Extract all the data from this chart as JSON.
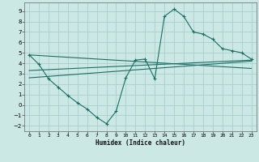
{
  "xlabel": "Humidex (Indice chaleur)",
  "background_color": "#cce8e5",
  "grid_color": "#aacfcc",
  "line_color": "#1a6e65",
  "xlim": [
    -0.5,
    23.5
  ],
  "ylim": [
    -2.5,
    9.8
  ],
  "xticks": [
    0,
    1,
    2,
    3,
    4,
    5,
    6,
    7,
    8,
    9,
    10,
    11,
    12,
    13,
    14,
    15,
    16,
    17,
    18,
    19,
    20,
    21,
    22,
    23
  ],
  "yticks": [
    -2,
    -1,
    0,
    1,
    2,
    3,
    4,
    5,
    6,
    7,
    8,
    9
  ],
  "series1_x": [
    0,
    1,
    2,
    3,
    4,
    5,
    6,
    7,
    8,
    9,
    10,
    11,
    12,
    13,
    14,
    15,
    16,
    17,
    18,
    19,
    20,
    21,
    22,
    23
  ],
  "series1_y": [
    4.8,
    3.9,
    2.5,
    1.7,
    0.9,
    0.2,
    -0.4,
    -1.2,
    -1.8,
    -0.6,
    2.6,
    4.3,
    4.4,
    2.5,
    8.5,
    9.2,
    8.5,
    7.0,
    6.8,
    6.3,
    5.4,
    5.2,
    5.0,
    4.4
  ],
  "series2_x": [
    0,
    23
  ],
  "series2_y": [
    3.3,
    4.3
  ],
  "series3_x": [
    0,
    23
  ],
  "series3_y": [
    4.8,
    3.5
  ],
  "series4_x": [
    0,
    23
  ],
  "series4_y": [
    2.6,
    4.2
  ]
}
